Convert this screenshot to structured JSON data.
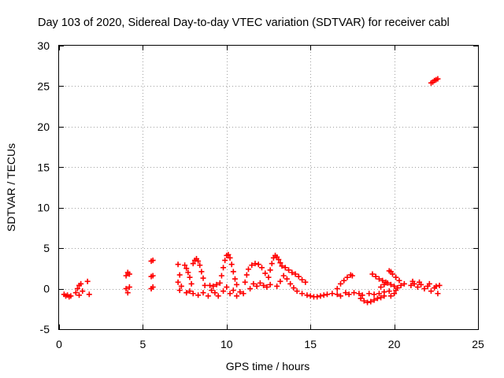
{
  "chart_data": {
    "type": "scatter",
    "title": "Day 103 of 2020, Sidereal Day-to-day VTEC variation (SDTVAR) for receiver cabl",
    "xlabel": "GPS time / hours",
    "ylabel": "SDTVAR / TECUs",
    "xlim": [
      0,
      25
    ],
    "ylim": [
      -5,
      30
    ],
    "x_ticks": [
      0,
      5,
      10,
      15,
      20,
      25
    ],
    "y_ticks": [
      -5,
      0,
      5,
      10,
      15,
      20,
      25,
      30
    ],
    "grid": true,
    "marker": "+",
    "series": [
      {
        "name": "SDTVAR",
        "color": "#ff0000",
        "points": [
          [
            0.3,
            -0.7
          ],
          [
            0.4,
            -0.9
          ],
          [
            0.5,
            -0.8
          ],
          [
            0.6,
            -1.0
          ],
          [
            0.7,
            -0.9
          ],
          [
            1.0,
            -0.5
          ],
          [
            1.1,
            0.0
          ],
          [
            1.2,
            0.4
          ],
          [
            1.3,
            0.6
          ],
          [
            1.2,
            -0.8
          ],
          [
            1.4,
            -0.3
          ],
          [
            1.7,
            0.9
          ],
          [
            1.8,
            -0.7
          ],
          [
            4.0,
            1.6
          ],
          [
            4.1,
            2.0
          ],
          [
            4.2,
            1.8
          ],
          [
            4.0,
            0.0
          ],
          [
            4.1,
            -0.5
          ],
          [
            4.2,
            0.2
          ],
          [
            5.5,
            3.4
          ],
          [
            5.6,
            3.5
          ],
          [
            5.5,
            1.5
          ],
          [
            5.6,
            1.6
          ],
          [
            5.5,
            0.0
          ],
          [
            5.6,
            0.2
          ],
          [
            7.1,
            3.0
          ],
          [
            7.2,
            1.7
          ],
          [
            7.1,
            0.8
          ],
          [
            7.2,
            -0.2
          ],
          [
            7.3,
            0.3
          ],
          [
            7.5,
            2.9
          ],
          [
            7.6,
            2.5
          ],
          [
            7.7,
            2.0
          ],
          [
            7.8,
            1.4
          ],
          [
            7.9,
            0.6
          ],
          [
            8.0,
            3.1
          ],
          [
            8.1,
            3.5
          ],
          [
            8.2,
            3.7
          ],
          [
            8.3,
            3.4
          ],
          [
            8.4,
            2.9
          ],
          [
            8.5,
            2.1
          ],
          [
            8.6,
            1.3
          ],
          [
            8.7,
            0.4
          ],
          [
            7.6,
            -0.5
          ],
          [
            7.8,
            -0.3
          ],
          [
            8.0,
            -0.6
          ],
          [
            8.3,
            -0.8
          ],
          [
            8.6,
            -0.5
          ],
          [
            8.9,
            -0.9
          ],
          [
            9.0,
            0.4
          ],
          [
            9.1,
            -0.2
          ],
          [
            9.2,
            0.3
          ],
          [
            9.3,
            -0.5
          ],
          [
            9.4,
            0.5
          ],
          [
            9.5,
            -0.9
          ],
          [
            9.6,
            0.7
          ],
          [
            9.7,
            1.6
          ],
          [
            9.8,
            2.6
          ],
          [
            9.9,
            3.5
          ],
          [
            10.0,
            4.1
          ],
          [
            10.1,
            4.2
          ],
          [
            10.2,
            3.8
          ],
          [
            10.3,
            3.0
          ],
          [
            10.4,
            2.1
          ],
          [
            10.5,
            1.2
          ],
          [
            10.6,
            0.5
          ],
          [
            9.8,
            -0.3
          ],
          [
            10.0,
            0.2
          ],
          [
            10.2,
            -0.6
          ],
          [
            10.4,
            -0.2
          ],
          [
            10.6,
            -0.9
          ],
          [
            10.8,
            -0.4
          ],
          [
            11.0,
            -0.6
          ],
          [
            11.1,
            0.8
          ],
          [
            11.2,
            1.7
          ],
          [
            11.3,
            2.4
          ],
          [
            11.5,
            2.9
          ],
          [
            11.7,
            3.1
          ],
          [
            11.9,
            3.0
          ],
          [
            12.1,
            2.6
          ],
          [
            12.3,
            1.9
          ],
          [
            11.4,
            0.0
          ],
          [
            11.6,
            0.6
          ],
          [
            11.8,
            0.3
          ],
          [
            12.0,
            0.7
          ],
          [
            12.2,
            0.4
          ],
          [
            12.4,
            0.2
          ],
          [
            12.6,
            0.5
          ],
          [
            12.5,
            1.4
          ],
          [
            12.6,
            2.3
          ],
          [
            12.7,
            3.1
          ],
          [
            12.8,
            3.8
          ],
          [
            12.9,
            4.1
          ],
          [
            13.0,
            3.9
          ],
          [
            13.1,
            3.6
          ],
          [
            13.2,
            3.2
          ],
          [
            13.3,
            2.8
          ],
          [
            13.5,
            2.6
          ],
          [
            13.7,
            2.3
          ],
          [
            13.9,
            2.0
          ],
          [
            14.1,
            1.8
          ],
          [
            14.3,
            1.5
          ],
          [
            14.5,
            1.1
          ],
          [
            14.7,
            0.8
          ],
          [
            13.0,
            0.3
          ],
          [
            13.2,
            0.9
          ],
          [
            13.4,
            1.6
          ],
          [
            13.6,
            1.2
          ],
          [
            13.8,
            0.6
          ],
          [
            14.0,
            0.1
          ],
          [
            14.2,
            -0.3
          ],
          [
            14.5,
            -0.6
          ],
          [
            14.8,
            -0.8
          ],
          [
            15.0,
            -0.9
          ],
          [
            15.2,
            -1.0
          ],
          [
            15.4,
            -1.0
          ],
          [
            15.6,
            -0.9
          ],
          [
            15.8,
            -0.8
          ],
          [
            16.0,
            -0.7
          ],
          [
            16.3,
            -0.6
          ],
          [
            16.6,
            -0.7
          ],
          [
            16.8,
            -0.9
          ],
          [
            16.6,
            0.0
          ],
          [
            16.8,
            0.6
          ],
          [
            17.0,
            1.0
          ],
          [
            17.2,
            1.4
          ],
          [
            17.4,
            1.7
          ],
          [
            17.5,
            1.6
          ],
          [
            17.1,
            -0.5
          ],
          [
            17.3,
            -0.7
          ],
          [
            17.6,
            -0.5
          ],
          [
            17.9,
            -0.6
          ],
          [
            18.1,
            -0.8
          ],
          [
            18.0,
            -1.2
          ],
          [
            18.2,
            -1.5
          ],
          [
            18.4,
            -1.7
          ],
          [
            18.6,
            -1.6
          ],
          [
            18.8,
            -1.4
          ],
          [
            19.0,
            -1.2
          ],
          [
            19.2,
            -1.1
          ],
          [
            19.4,
            -0.9
          ],
          [
            18.5,
            -0.6
          ],
          [
            18.8,
            -0.7
          ],
          [
            19.1,
            -0.6
          ],
          [
            19.4,
            -0.4
          ],
          [
            19.7,
            -0.3
          ],
          [
            19.2,
            0.2
          ],
          [
            19.4,
            0.5
          ],
          [
            19.6,
            0.7
          ],
          [
            19.8,
            0.5
          ],
          [
            20.0,
            0.3
          ],
          [
            20.2,
            0.1
          ],
          [
            20.4,
            0.4
          ],
          [
            20.6,
            0.6
          ],
          [
            19.8,
            -0.9
          ],
          [
            20.0,
            -0.6
          ],
          [
            20.1,
            -0.2
          ],
          [
            18.7,
            1.8
          ],
          [
            18.9,
            1.5
          ],
          [
            19.1,
            1.2
          ],
          [
            19.3,
            1.0
          ],
          [
            19.5,
            0.8
          ],
          [
            19.7,
            2.2
          ],
          [
            19.8,
            2.1
          ],
          [
            19.9,
            1.8
          ],
          [
            20.1,
            1.4
          ],
          [
            20.3,
            1.0
          ],
          [
            21.0,
            0.4
          ],
          [
            21.2,
            0.6
          ],
          [
            21.4,
            0.2
          ],
          [
            21.6,
            0.5
          ],
          [
            21.8,
            0.0
          ],
          [
            22.0,
            0.3
          ],
          [
            22.2,
            -0.3
          ],
          [
            22.4,
            0.1
          ],
          [
            22.6,
            -0.6
          ],
          [
            21.1,
            0.9
          ],
          [
            21.5,
            0.8
          ],
          [
            22.1,
            0.6
          ],
          [
            22.5,
            0.3
          ],
          [
            22.7,
            0.4
          ],
          [
            22.2,
            25.4
          ],
          [
            22.3,
            25.5
          ],
          [
            22.4,
            25.7
          ],
          [
            22.5,
            25.8
          ],
          [
            22.6,
            25.9
          ]
        ]
      }
    ]
  }
}
